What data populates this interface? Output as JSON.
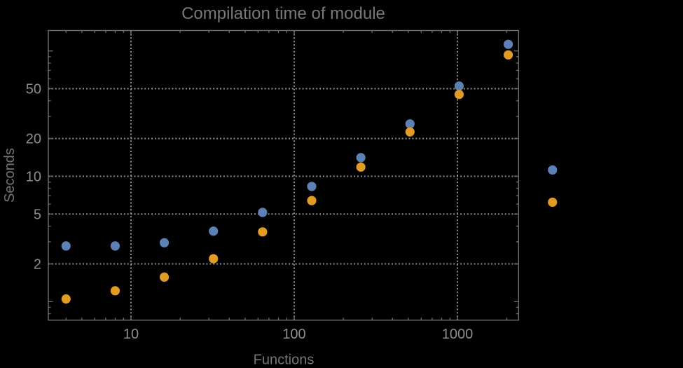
{
  "chart_data": {
    "type": "scatter",
    "title": "Compilation time of module",
    "xlabel": "Functions",
    "ylabel": "Seconds",
    "x_scale": "log",
    "y_scale": "log",
    "x_range": [
      3.1,
      2360
    ],
    "y_range": [
      0.71,
      148
    ],
    "grid": "dotted",
    "x": [
      4,
      8,
      16,
      32,
      64,
      128,
      256,
      512,
      1024,
      2048
    ],
    "series": [
      {
        "name": "series-1-blue",
        "color": "#5E81B5",
        "values": [
          2.78,
          2.78,
          2.95,
          3.65,
          5.15,
          8.3,
          14.1,
          26.2,
          52.5,
          113
        ]
      },
      {
        "name": "series-2-orange",
        "color": "#E19C24",
        "values": [
          1.05,
          1.22,
          1.57,
          2.2,
          3.6,
          6.4,
          11.85,
          22.6,
          45,
          93
        ]
      }
    ],
    "x_ticks": [
      {
        "value": 10,
        "label": "10"
      },
      {
        "value": 100,
        "label": "100"
      },
      {
        "value": 1000,
        "label": "1000"
      }
    ],
    "y_ticks": [
      {
        "value": 50,
        "label": "50"
      },
      {
        "value": 20,
        "label": "20"
      },
      {
        "value": 10,
        "label": "10"
      },
      {
        "value": 5,
        "label": "5"
      },
      {
        "value": 2,
        "label": "2"
      }
    ],
    "y_unlabeled_major_ticks": [
      1,
      100
    ],
    "x_gridlines": [
      10,
      100,
      1000
    ],
    "y_gridlines": [
      2,
      5,
      10,
      20,
      50
    ],
    "legend": {
      "labels_visible": false,
      "markers": [
        {
          "name": "legend-marker-blue",
          "color": "#5E81B5"
        },
        {
          "name": "legend-marker-orange",
          "color": "#E19C24"
        }
      ]
    }
  }
}
